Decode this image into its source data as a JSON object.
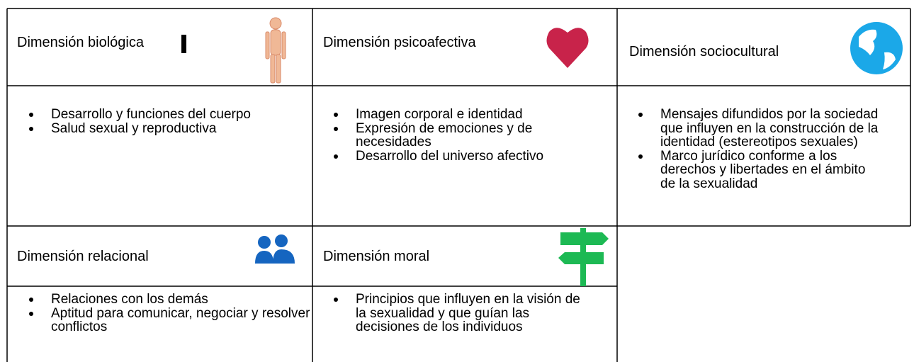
{
  "sections": [
    {
      "title": "Dimensión biológica",
      "items": [
        "Desarrollo y funciones del cuerpo",
        "Salud sexual y reproductiva"
      ]
    },
    {
      "title": "Dimensión psicoafectiva",
      "items": [
        "Imagen corporal e identidad",
        "Expresión de emociones y de necesidades",
        "Desarrollo del universo afectivo"
      ]
    },
    {
      "title": "Dimensión sociocultural",
      "items": [
        "Mensajes difundidos por la sociedad que influyen en la construcción de la identidad (estereotipos sexuales)",
        "Marco jurídico conforme a los derechos y libertades en el ámbito de la sexualidad"
      ]
    },
    {
      "title": "Dimensión relacional",
      "items": [
        "Relaciones con los demás",
        "Aptitud para comunicar, negociar y resolver conflictos"
      ]
    },
    {
      "title": "Dimensión moral",
      "items": [
        "Principios que influyen en la visión de la sexualidad y que guían las decisiones de los individuos"
      ]
    }
  ]
}
